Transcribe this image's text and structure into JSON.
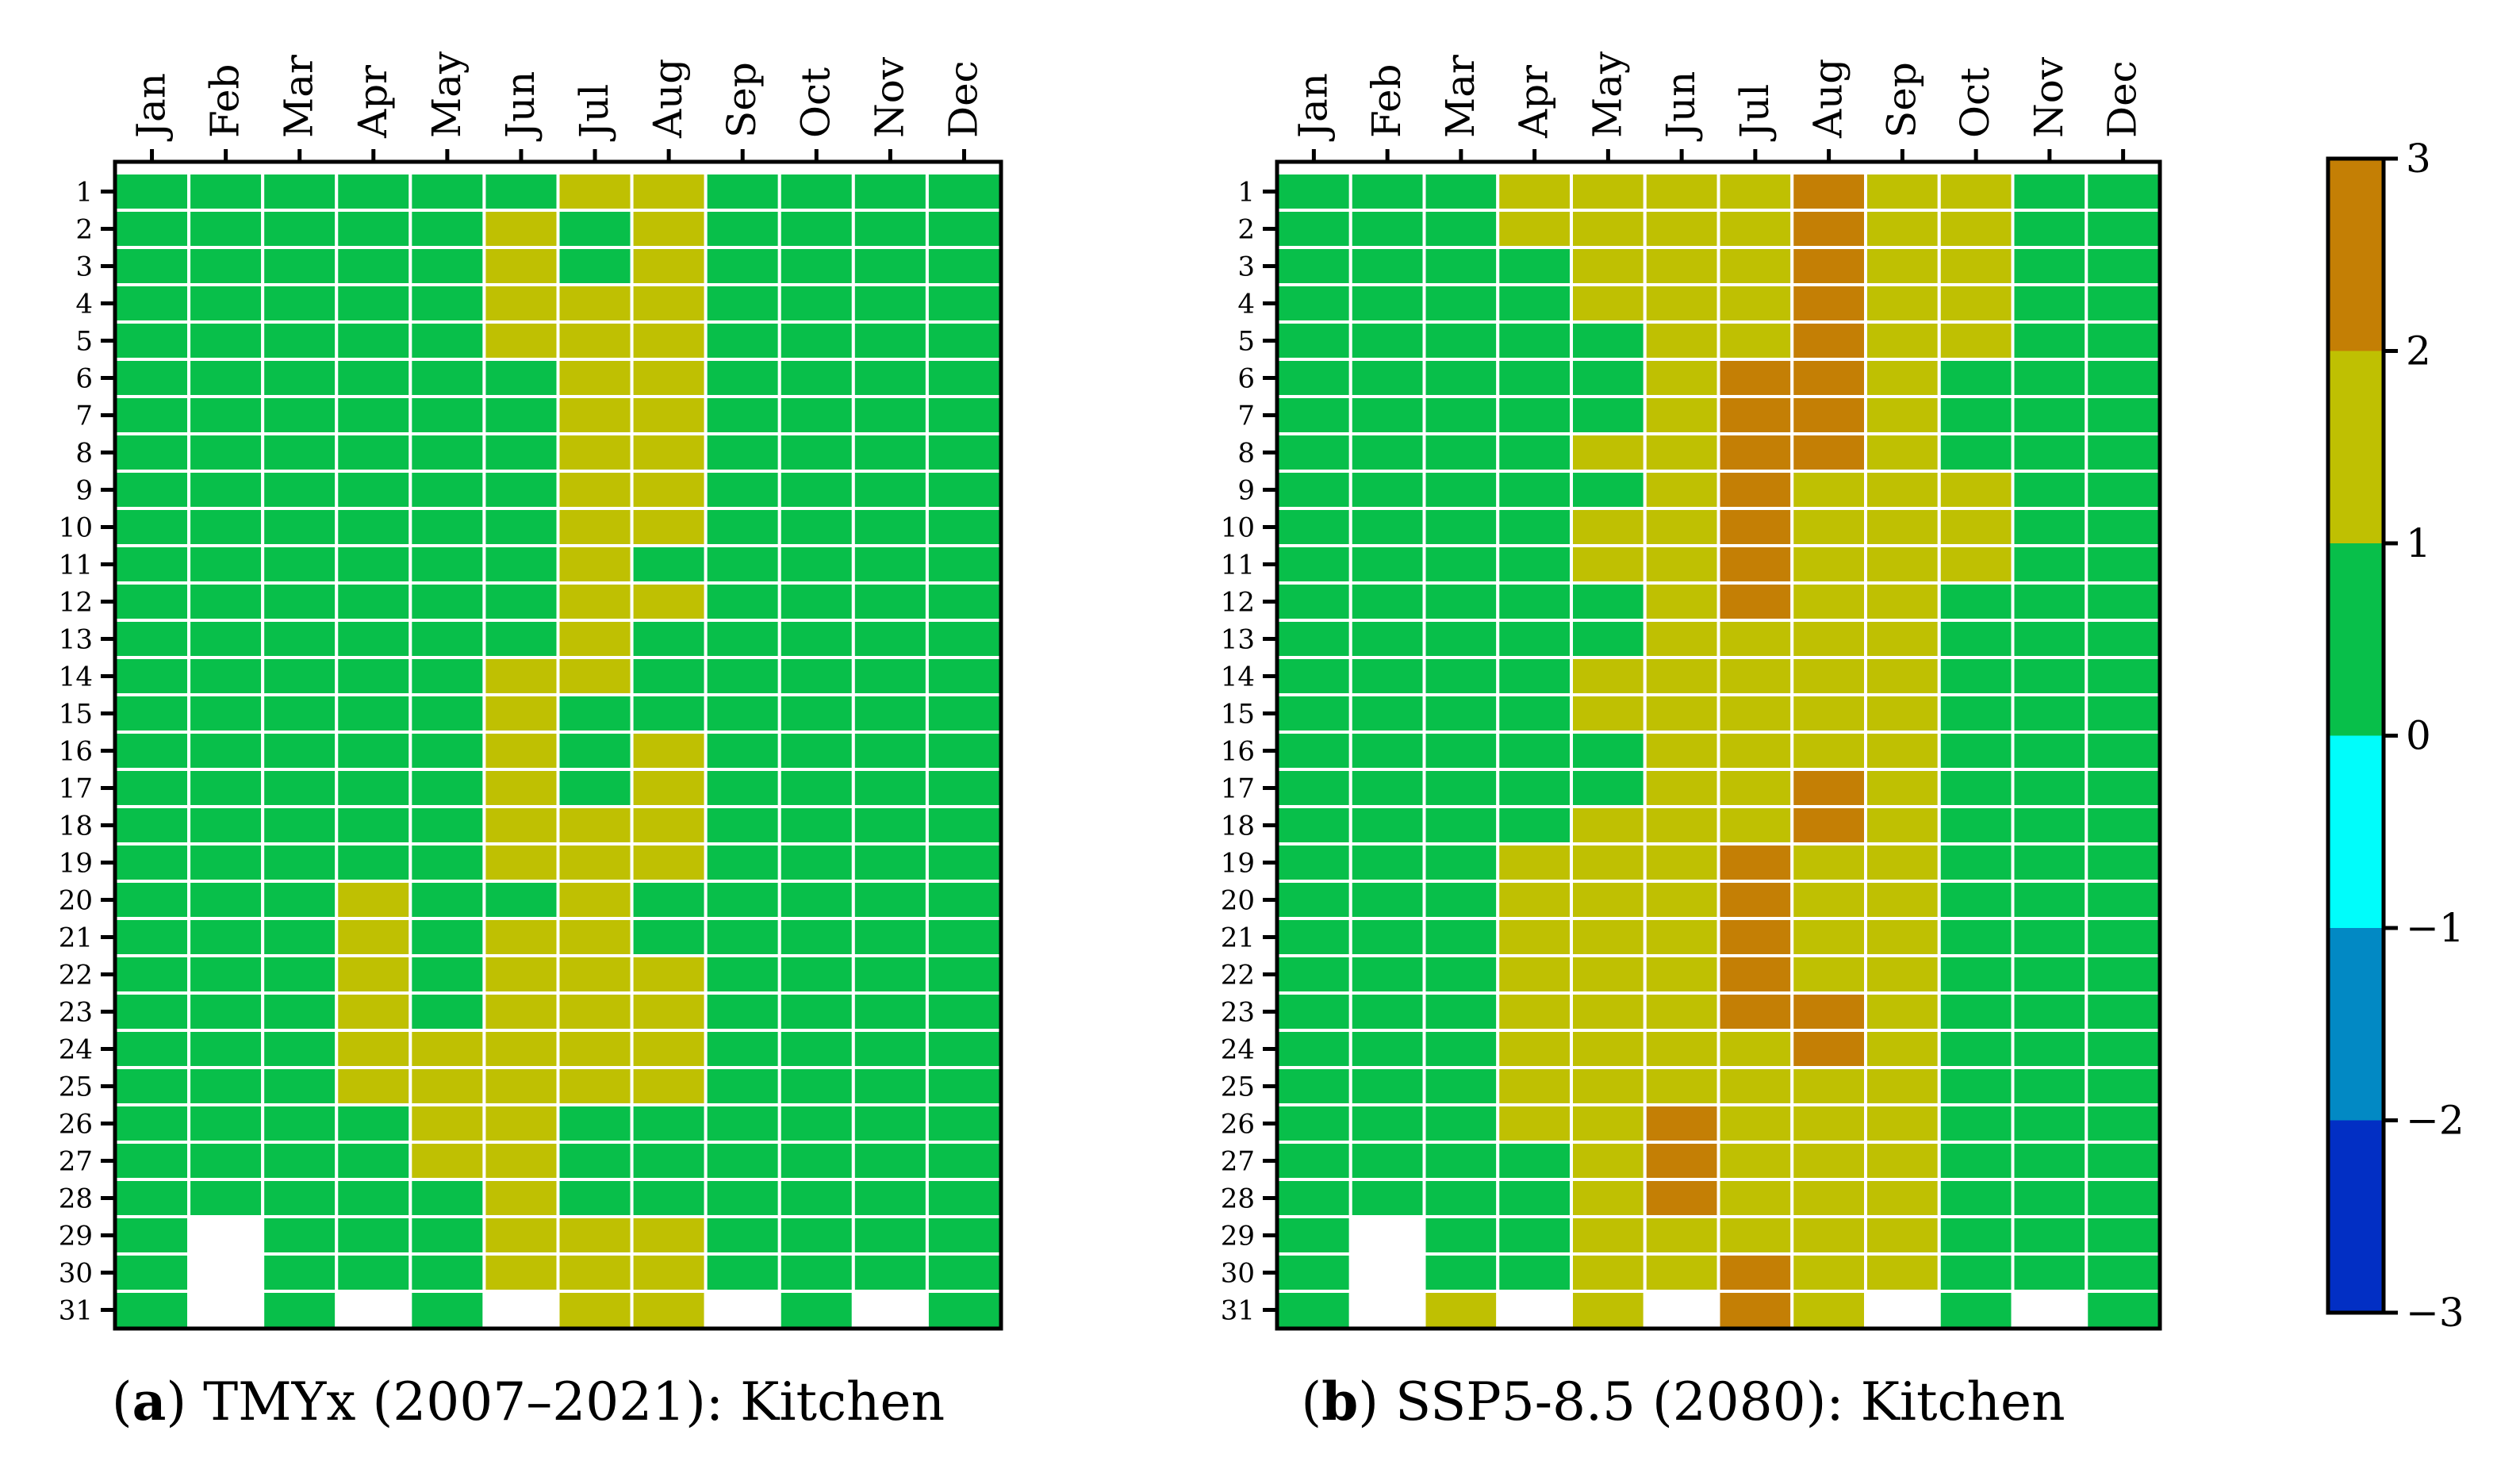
{
  "chart_data": [
    {
      "type": "heatmap",
      "title": "TMYx (2007–2021): Kitchen",
      "caption_letter": "a",
      "caption_text": "TMYx (2007–2021): Kitchen",
      "xlabel": "",
      "ylabel": "",
      "months": [
        "Jan",
        "Feb",
        "Mar",
        "Apr",
        "May",
        "Jun",
        "Jul",
        "Aug",
        "Sep",
        "Oct",
        "Nov",
        "Dec"
      ],
      "days": [
        1,
        2,
        3,
        4,
        5,
        6,
        7,
        8,
        9,
        10,
        11,
        12,
        13,
        14,
        15,
        16,
        17,
        18,
        19,
        20,
        21,
        22,
        23,
        24,
        25,
        26,
        27,
        28,
        29,
        30,
        31
      ],
      "note": "values[month][day-1]; null = day does not exist",
      "values": [
        [
          0,
          0,
          0,
          0,
          0,
          0,
          0,
          0,
          0,
          0,
          0,
          0,
          0,
          0,
          0,
          0,
          0,
          0,
          0,
          0,
          0,
          0,
          0,
          0,
          0,
          0,
          0,
          0,
          0,
          0,
          0
        ],
        [
          0,
          0,
          0,
          0,
          0,
          0,
          0,
          0,
          0,
          0,
          0,
          0,
          0,
          0,
          0,
          0,
          0,
          0,
          0,
          0,
          0,
          0,
          0,
          0,
          0,
          0,
          0,
          0,
          null,
          null,
          null
        ],
        [
          0,
          0,
          0,
          0,
          0,
          0,
          0,
          0,
          0,
          0,
          0,
          0,
          0,
          0,
          0,
          0,
          0,
          0,
          0,
          0,
          0,
          0,
          0,
          0,
          0,
          0,
          0,
          0,
          0,
          0,
          0
        ],
        [
          0,
          0,
          0,
          0,
          0,
          0,
          0,
          0,
          0,
          0,
          0,
          0,
          0,
          0,
          0,
          0,
          0,
          0,
          0,
          1,
          1,
          1,
          1,
          1,
          1,
          0,
          0,
          0,
          0,
          0,
          null
        ],
        [
          0,
          0,
          0,
          0,
          0,
          0,
          0,
          0,
          0,
          0,
          0,
          0,
          0,
          0,
          0,
          0,
          0,
          0,
          0,
          0,
          0,
          0,
          0,
          1,
          1,
          1,
          1,
          0,
          0,
          0,
          0
        ],
        [
          0,
          1,
          1,
          1,
          1,
          0,
          0,
          0,
          0,
          0,
          0,
          0,
          0,
          1,
          1,
          1,
          1,
          1,
          1,
          0,
          1,
          1,
          1,
          1,
          1,
          1,
          1,
          1,
          1,
          1,
          null
        ],
        [
          1,
          0,
          0,
          1,
          1,
          1,
          1,
          1,
          1,
          1,
          1,
          1,
          1,
          1,
          0,
          0,
          0,
          1,
          1,
          1,
          1,
          1,
          1,
          1,
          1,
          0,
          0,
          0,
          1,
          1,
          1
        ],
        [
          1,
          1,
          1,
          1,
          1,
          1,
          1,
          1,
          1,
          1,
          0,
          1,
          0,
          0,
          0,
          1,
          1,
          1,
          1,
          0,
          0,
          1,
          1,
          1,
          1,
          0,
          0,
          0,
          1,
          1,
          1
        ],
        [
          0,
          0,
          0,
          0,
          0,
          0,
          0,
          0,
          0,
          0,
          0,
          0,
          0,
          0,
          0,
          0,
          0,
          0,
          0,
          0,
          0,
          0,
          0,
          0,
          0,
          0,
          0,
          0,
          0,
          0,
          null
        ],
        [
          0,
          0,
          0,
          0,
          0,
          0,
          0,
          0,
          0,
          0,
          0,
          0,
          0,
          0,
          0,
          0,
          0,
          0,
          0,
          0,
          0,
          0,
          0,
          0,
          0,
          0,
          0,
          0,
          0,
          0,
          0
        ],
        [
          0,
          0,
          0,
          0,
          0,
          0,
          0,
          0,
          0,
          0,
          0,
          0,
          0,
          0,
          0,
          0,
          0,
          0,
          0,
          0,
          0,
          0,
          0,
          0,
          0,
          0,
          0,
          0,
          0,
          0,
          null
        ],
        [
          0,
          0,
          0,
          0,
          0,
          0,
          0,
          0,
          0,
          0,
          0,
          0,
          0,
          0,
          0,
          0,
          0,
          0,
          0,
          0,
          0,
          0,
          0,
          0,
          0,
          0,
          0,
          0,
          0,
          0,
          0
        ]
      ]
    },
    {
      "type": "heatmap",
      "title": "SSP5-8.5 (2080): Kitchen",
      "caption_letter": "b",
      "caption_text": "SSP5-8.5 (2080): Kitchen",
      "xlabel": "",
      "ylabel": "",
      "months": [
        "Jan",
        "Feb",
        "Mar",
        "Apr",
        "May",
        "Jun",
        "Jul",
        "Aug",
        "Sep",
        "Oct",
        "Nov",
        "Dec"
      ],
      "days": [
        1,
        2,
        3,
        4,
        5,
        6,
        7,
        8,
        9,
        10,
        11,
        12,
        13,
        14,
        15,
        16,
        17,
        18,
        19,
        20,
        21,
        22,
        23,
        24,
        25,
        26,
        27,
        28,
        29,
        30,
        31
      ],
      "note": "values[month][day-1]; null = day does not exist",
      "values": [
        [
          0,
          0,
          0,
          0,
          0,
          0,
          0,
          0,
          0,
          0,
          0,
          0,
          0,
          0,
          0,
          0,
          0,
          0,
          0,
          0,
          0,
          0,
          0,
          0,
          0,
          0,
          0,
          0,
          0,
          0,
          0
        ],
        [
          0,
          0,
          0,
          0,
          0,
          0,
          0,
          0,
          0,
          0,
          0,
          0,
          0,
          0,
          0,
          0,
          0,
          0,
          0,
          0,
          0,
          0,
          0,
          0,
          0,
          0,
          0,
          0,
          null,
          null,
          null
        ],
        [
          0,
          0,
          0,
          0,
          0,
          0,
          0,
          0,
          0,
          0,
          0,
          0,
          0,
          0,
          0,
          0,
          0,
          0,
          0,
          0,
          0,
          0,
          0,
          0,
          0,
          0,
          0,
          0,
          0,
          0,
          1
        ],
        [
          1,
          1,
          0,
          0,
          0,
          0,
          0,
          0,
          0,
          0,
          0,
          0,
          0,
          0,
          0,
          0,
          0,
          0,
          1,
          1,
          1,
          1,
          1,
          1,
          1,
          1,
          0,
          0,
          0,
          0,
          null
        ],
        [
          1,
          1,
          1,
          1,
          0,
          0,
          0,
          1,
          0,
          1,
          1,
          0,
          0,
          1,
          1,
          0,
          0,
          1,
          1,
          1,
          1,
          1,
          1,
          1,
          1,
          1,
          1,
          1,
          1,
          1,
          1
        ],
        [
          1,
          1,
          1,
          1,
          1,
          1,
          1,
          1,
          1,
          1,
          1,
          1,
          1,
          1,
          1,
          1,
          1,
          1,
          1,
          1,
          1,
          1,
          1,
          1,
          1,
          2,
          2,
          2,
          1,
          1,
          null
        ],
        [
          1,
          1,
          1,
          1,
          1,
          2,
          2,
          2,
          2,
          2,
          2,
          2,
          1,
          1,
          1,
          1,
          1,
          1,
          2,
          2,
          2,
          2,
          2,
          1,
          1,
          1,
          1,
          1,
          1,
          2,
          2
        ],
        [
          2,
          2,
          2,
          2,
          2,
          2,
          2,
          2,
          1,
          1,
          1,
          1,
          1,
          1,
          1,
          1,
          2,
          2,
          1,
          1,
          1,
          1,
          2,
          2,
          1,
          1,
          1,
          1,
          1,
          1,
          1
        ],
        [
          1,
          1,
          1,
          1,
          1,
          1,
          1,
          1,
          1,
          1,
          1,
          1,
          1,
          1,
          1,
          1,
          1,
          1,
          1,
          1,
          1,
          1,
          1,
          1,
          1,
          1,
          1,
          1,
          1,
          1,
          null
        ],
        [
          1,
          1,
          1,
          1,
          1,
          0,
          0,
          0,
          1,
          1,
          1,
          0,
          0,
          0,
          0,
          0,
          0,
          0,
          0,
          0,
          0,
          0,
          0,
          0,
          0,
          0,
          0,
          0,
          0,
          0,
          0
        ],
        [
          0,
          0,
          0,
          0,
          0,
          0,
          0,
          0,
          0,
          0,
          0,
          0,
          0,
          0,
          0,
          0,
          0,
          0,
          0,
          0,
          0,
          0,
          0,
          0,
          0,
          0,
          0,
          0,
          0,
          0,
          null
        ],
        [
          0,
          0,
          0,
          0,
          0,
          0,
          0,
          0,
          0,
          0,
          0,
          0,
          0,
          0,
          0,
          0,
          0,
          0,
          0,
          0,
          0,
          0,
          0,
          0,
          0,
          0,
          0,
          0,
          0,
          0,
          0
        ]
      ]
    }
  ],
  "colorbar": {
    "ticks": [
      "3",
      "2",
      "1",
      "0",
      "−1",
      "−2",
      "−3"
    ],
    "range": [
      -3,
      3
    ],
    "bins": [
      {
        "from": 2,
        "to": 3,
        "color": "#c47f05"
      },
      {
        "from": 1,
        "to": 2,
        "color": "#bfc002"
      },
      {
        "from": 0,
        "to": 1,
        "color": "#08bf4a"
      },
      {
        "from": -1,
        "to": 0,
        "color": "#00fdfb"
      },
      {
        "from": -2,
        "to": -1,
        "color": "#0289c4"
      },
      {
        "from": -3,
        "to": -2,
        "color": "#022fc4"
      }
    ]
  },
  "colors": {
    "cell_0": "#08bf4a",
    "cell_1": "#bfc002",
    "cell_2": "#c47f05",
    "gridline": "#ffffff",
    "missing": "#ffffff"
  }
}
